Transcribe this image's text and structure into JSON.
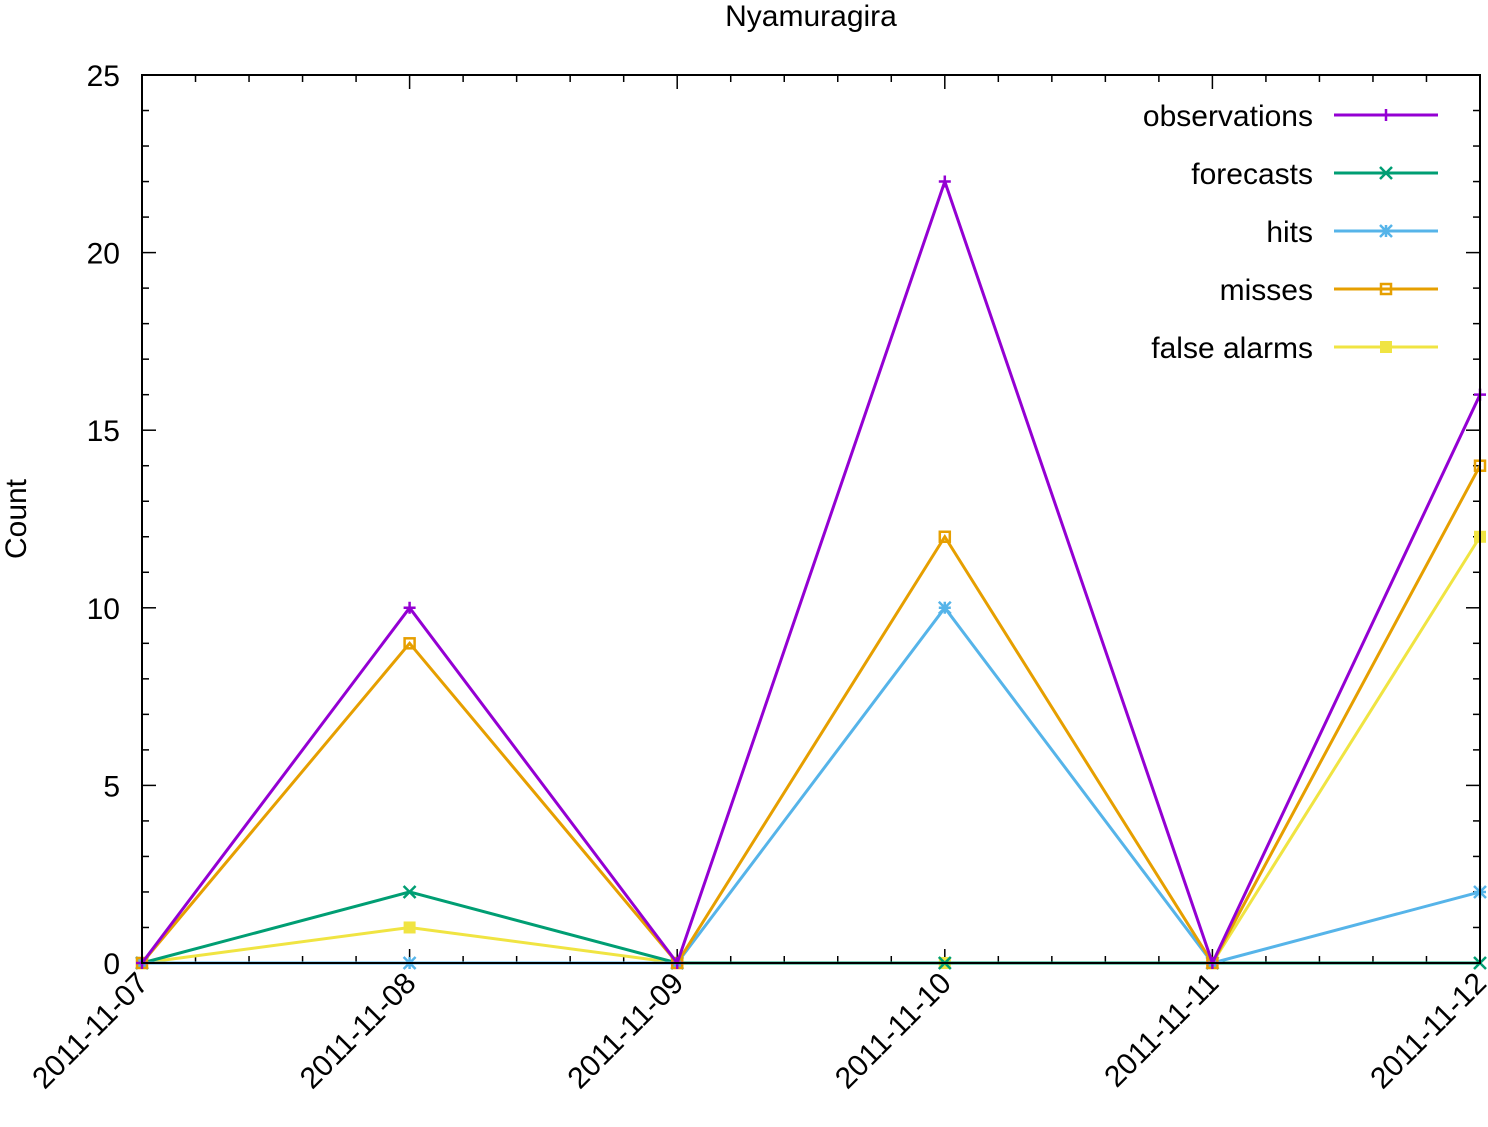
{
  "chart_data": {
    "type": "line",
    "title": "Nyamuragira",
    "xlabel": "",
    "ylabel": "Count",
    "x": [
      "2011-11-07",
      "2011-11-08",
      "2011-11-09",
      "2011-11-10",
      "2011-11-11",
      "2011-11-12"
    ],
    "ylim": [
      0,
      25
    ],
    "yticks": [
      0,
      5,
      10,
      15,
      20,
      25
    ],
    "grid": false,
    "legend_position": "top-right",
    "series": [
      {
        "name": "observations",
        "color": "#9400d3",
        "marker": "plus",
        "values": [
          0,
          10,
          0,
          22,
          0,
          16
        ]
      },
      {
        "name": "forecasts",
        "color": "#009e73",
        "marker": "cross",
        "values": [
          0,
          2,
          0,
          0,
          0,
          0
        ]
      },
      {
        "name": "hits",
        "color": "#56b4e9",
        "marker": "star",
        "values": [
          0,
          0,
          0,
          10,
          0,
          2
        ]
      },
      {
        "name": "misses",
        "color": "#e69f00",
        "marker": "open-square",
        "values": [
          0,
          9,
          0,
          12,
          0,
          14
        ]
      },
      {
        "name": "false alarms",
        "color": "#f0e442",
        "marker": "filled-square",
        "values": [
          0,
          1,
          0,
          0,
          0,
          12
        ]
      }
    ]
  }
}
